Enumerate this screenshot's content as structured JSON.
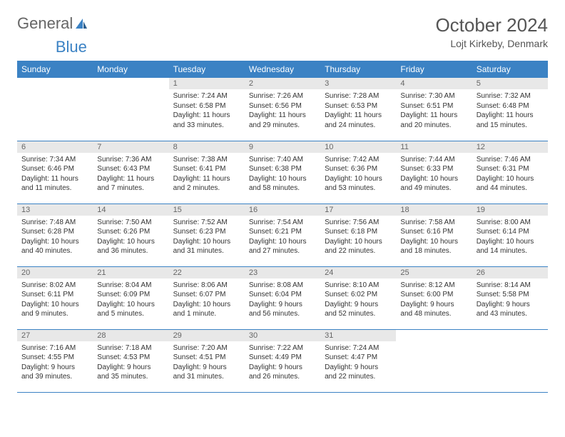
{
  "logo": {
    "text1": "General",
    "text2": "Blue"
  },
  "title": {
    "month": "October 2024",
    "location": "Lojt Kirkeby, Denmark"
  },
  "colors": {
    "header_bg": "#3b82c4",
    "header_text": "#ffffff",
    "daynum_bg": "#e8e8e8",
    "daynum_text": "#666666",
    "body_text": "#333333",
    "border": "#3b82c4",
    "logo_general": "#666666",
    "logo_blue": "#3b82c4"
  },
  "weekdays": [
    "Sunday",
    "Monday",
    "Tuesday",
    "Wednesday",
    "Thursday",
    "Friday",
    "Saturday"
  ],
  "weeks": [
    [
      {
        "empty": true
      },
      {
        "empty": true
      },
      {
        "n": "1",
        "sunrise": "Sunrise: 7:24 AM",
        "sunset": "Sunset: 6:58 PM",
        "daylight": "Daylight: 11 hours and 33 minutes."
      },
      {
        "n": "2",
        "sunrise": "Sunrise: 7:26 AM",
        "sunset": "Sunset: 6:56 PM",
        "daylight": "Daylight: 11 hours and 29 minutes."
      },
      {
        "n": "3",
        "sunrise": "Sunrise: 7:28 AM",
        "sunset": "Sunset: 6:53 PM",
        "daylight": "Daylight: 11 hours and 24 minutes."
      },
      {
        "n": "4",
        "sunrise": "Sunrise: 7:30 AM",
        "sunset": "Sunset: 6:51 PM",
        "daylight": "Daylight: 11 hours and 20 minutes."
      },
      {
        "n": "5",
        "sunrise": "Sunrise: 7:32 AM",
        "sunset": "Sunset: 6:48 PM",
        "daylight": "Daylight: 11 hours and 15 minutes."
      }
    ],
    [
      {
        "n": "6",
        "sunrise": "Sunrise: 7:34 AM",
        "sunset": "Sunset: 6:46 PM",
        "daylight": "Daylight: 11 hours and 11 minutes."
      },
      {
        "n": "7",
        "sunrise": "Sunrise: 7:36 AM",
        "sunset": "Sunset: 6:43 PM",
        "daylight": "Daylight: 11 hours and 7 minutes."
      },
      {
        "n": "8",
        "sunrise": "Sunrise: 7:38 AM",
        "sunset": "Sunset: 6:41 PM",
        "daylight": "Daylight: 11 hours and 2 minutes."
      },
      {
        "n": "9",
        "sunrise": "Sunrise: 7:40 AM",
        "sunset": "Sunset: 6:38 PM",
        "daylight": "Daylight: 10 hours and 58 minutes."
      },
      {
        "n": "10",
        "sunrise": "Sunrise: 7:42 AM",
        "sunset": "Sunset: 6:36 PM",
        "daylight": "Daylight: 10 hours and 53 minutes."
      },
      {
        "n": "11",
        "sunrise": "Sunrise: 7:44 AM",
        "sunset": "Sunset: 6:33 PM",
        "daylight": "Daylight: 10 hours and 49 minutes."
      },
      {
        "n": "12",
        "sunrise": "Sunrise: 7:46 AM",
        "sunset": "Sunset: 6:31 PM",
        "daylight": "Daylight: 10 hours and 44 minutes."
      }
    ],
    [
      {
        "n": "13",
        "sunrise": "Sunrise: 7:48 AM",
        "sunset": "Sunset: 6:28 PM",
        "daylight": "Daylight: 10 hours and 40 minutes."
      },
      {
        "n": "14",
        "sunrise": "Sunrise: 7:50 AM",
        "sunset": "Sunset: 6:26 PM",
        "daylight": "Daylight: 10 hours and 36 minutes."
      },
      {
        "n": "15",
        "sunrise": "Sunrise: 7:52 AM",
        "sunset": "Sunset: 6:23 PM",
        "daylight": "Daylight: 10 hours and 31 minutes."
      },
      {
        "n": "16",
        "sunrise": "Sunrise: 7:54 AM",
        "sunset": "Sunset: 6:21 PM",
        "daylight": "Daylight: 10 hours and 27 minutes."
      },
      {
        "n": "17",
        "sunrise": "Sunrise: 7:56 AM",
        "sunset": "Sunset: 6:18 PM",
        "daylight": "Daylight: 10 hours and 22 minutes."
      },
      {
        "n": "18",
        "sunrise": "Sunrise: 7:58 AM",
        "sunset": "Sunset: 6:16 PM",
        "daylight": "Daylight: 10 hours and 18 minutes."
      },
      {
        "n": "19",
        "sunrise": "Sunrise: 8:00 AM",
        "sunset": "Sunset: 6:14 PM",
        "daylight": "Daylight: 10 hours and 14 minutes."
      }
    ],
    [
      {
        "n": "20",
        "sunrise": "Sunrise: 8:02 AM",
        "sunset": "Sunset: 6:11 PM",
        "daylight": "Daylight: 10 hours and 9 minutes."
      },
      {
        "n": "21",
        "sunrise": "Sunrise: 8:04 AM",
        "sunset": "Sunset: 6:09 PM",
        "daylight": "Daylight: 10 hours and 5 minutes."
      },
      {
        "n": "22",
        "sunrise": "Sunrise: 8:06 AM",
        "sunset": "Sunset: 6:07 PM",
        "daylight": "Daylight: 10 hours and 1 minute."
      },
      {
        "n": "23",
        "sunrise": "Sunrise: 8:08 AM",
        "sunset": "Sunset: 6:04 PM",
        "daylight": "Daylight: 9 hours and 56 minutes."
      },
      {
        "n": "24",
        "sunrise": "Sunrise: 8:10 AM",
        "sunset": "Sunset: 6:02 PM",
        "daylight": "Daylight: 9 hours and 52 minutes."
      },
      {
        "n": "25",
        "sunrise": "Sunrise: 8:12 AM",
        "sunset": "Sunset: 6:00 PM",
        "daylight": "Daylight: 9 hours and 48 minutes."
      },
      {
        "n": "26",
        "sunrise": "Sunrise: 8:14 AM",
        "sunset": "Sunset: 5:58 PM",
        "daylight": "Daylight: 9 hours and 43 minutes."
      }
    ],
    [
      {
        "n": "27",
        "sunrise": "Sunrise: 7:16 AM",
        "sunset": "Sunset: 4:55 PM",
        "daylight": "Daylight: 9 hours and 39 minutes."
      },
      {
        "n": "28",
        "sunrise": "Sunrise: 7:18 AM",
        "sunset": "Sunset: 4:53 PM",
        "daylight": "Daylight: 9 hours and 35 minutes."
      },
      {
        "n": "29",
        "sunrise": "Sunrise: 7:20 AM",
        "sunset": "Sunset: 4:51 PM",
        "daylight": "Daylight: 9 hours and 31 minutes."
      },
      {
        "n": "30",
        "sunrise": "Sunrise: 7:22 AM",
        "sunset": "Sunset: 4:49 PM",
        "daylight": "Daylight: 9 hours and 26 minutes."
      },
      {
        "n": "31",
        "sunrise": "Sunrise: 7:24 AM",
        "sunset": "Sunset: 4:47 PM",
        "daylight": "Daylight: 9 hours and 22 minutes."
      },
      {
        "empty": true
      },
      {
        "empty": true
      }
    ]
  ]
}
